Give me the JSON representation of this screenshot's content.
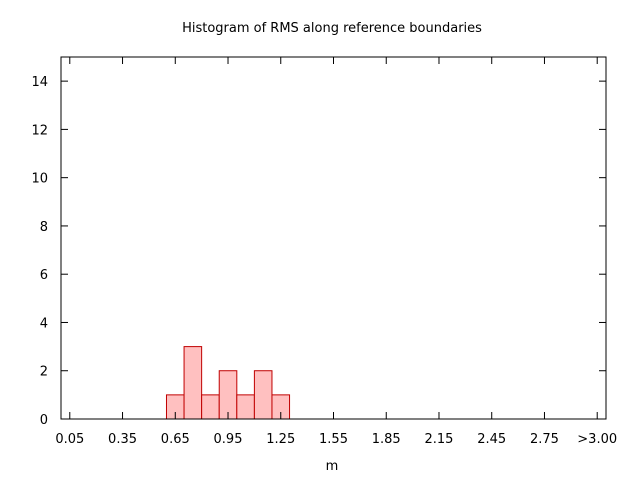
{
  "chart_data": {
    "type": "bar",
    "title": "Histogram of RMS along reference boundaries",
    "xlabel": "m",
    "ylabel": "",
    "xlim": [
      0.0,
      3.1
    ],
    "ylim": [
      0,
      15
    ],
    "x_ticks": [
      {
        "value": 0.05,
        "label": "0.05"
      },
      {
        "value": 0.35,
        "label": "0.35"
      },
      {
        "value": 0.65,
        "label": "0.65"
      },
      {
        "value": 0.95,
        "label": "0.95"
      },
      {
        "value": 1.25,
        "label": "1.25"
      },
      {
        "value": 1.55,
        "label": "1.55"
      },
      {
        "value": 1.85,
        "label": "1.85"
      },
      {
        "value": 2.15,
        "label": "2.15"
      },
      {
        "value": 2.45,
        "label": "2.45"
      },
      {
        "value": 2.75,
        "label": "2.75"
      },
      {
        "value": 3.05,
        "label": ">3.00"
      }
    ],
    "y_ticks": [
      0,
      2,
      4,
      6,
      8,
      10,
      12,
      14
    ],
    "bin_width": 0.1,
    "bins": [
      {
        "x": 0.65,
        "count": 1
      },
      {
        "x": 0.75,
        "count": 3
      },
      {
        "x": 0.85,
        "count": 1
      },
      {
        "x": 0.95,
        "count": 2
      },
      {
        "x": 1.05,
        "count": 1
      },
      {
        "x": 1.15,
        "count": 2
      },
      {
        "x": 1.25,
        "count": 1
      }
    ],
    "grid": false,
    "bar_fill": "#ffc0c0",
    "bar_stroke": "#c00000"
  }
}
